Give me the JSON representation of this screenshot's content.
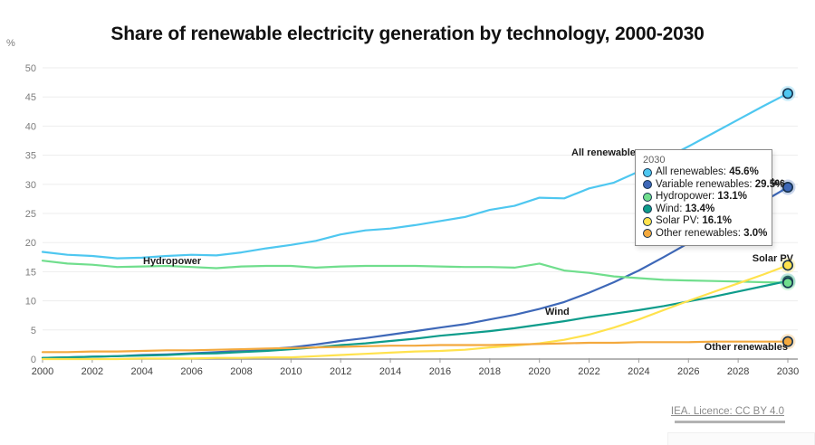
{
  "title": "Share of renewable electricity generation by technology, 2000-2030",
  "unit_label": "%",
  "footer": {
    "license_link": "IEA. Licence: CC BY 4.0"
  },
  "chart_data": {
    "type": "line",
    "x": [
      2000,
      2001,
      2002,
      2003,
      2004,
      2005,
      2006,
      2007,
      2008,
      2009,
      2010,
      2011,
      2012,
      2013,
      2014,
      2015,
      2016,
      2017,
      2018,
      2019,
      2020,
      2021,
      2022,
      2023,
      2024,
      2025,
      2026,
      2027,
      2028,
      2029,
      2030
    ],
    "x_tick_labels": [
      "2000",
      "2002",
      "2004",
      "2006",
      "2008",
      "2010",
      "2012",
      "2014",
      "2016",
      "2018",
      "2020",
      "2022",
      "2024",
      "2026",
      "2028",
      "2030"
    ],
    "ylim": [
      0,
      50
    ],
    "y_ticks": [
      0,
      5,
      10,
      15,
      20,
      25,
      30,
      35,
      40,
      45,
      50
    ],
    "grid": true,
    "legend_position": "none",
    "axis_colors": {
      "grid": "#ededed",
      "axis": "#9b9b9b",
      "y_label": "#7d7d7d",
      "x_label": "#3f3f3f"
    },
    "series": [
      {
        "name": "All renewables",
        "color": "#4EC7F0",
        "values": [
          18.4,
          17.9,
          17.7,
          17.3,
          17.4,
          17.7,
          17.9,
          17.8,
          18.3,
          19.0,
          19.6,
          20.3,
          21.4,
          22.1,
          22.4,
          23.0,
          23.7,
          24.4,
          25.6,
          26.3,
          27.7,
          27.6,
          29.3,
          30.3,
          32.2,
          34.3,
          36.5,
          38.8,
          41.1,
          43.4,
          45.6
        ]
      },
      {
        "name": "Variable renewables",
        "color": "#3E68B8",
        "values": [
          0.2,
          0.3,
          0.4,
          0.5,
          0.7,
          0.8,
          1.0,
          1.2,
          1.4,
          1.7,
          2.0,
          2.5,
          3.1,
          3.6,
          4.2,
          4.8,
          5.4,
          6.0,
          6.8,
          7.6,
          8.6,
          9.8,
          11.4,
          13.2,
          15.2,
          17.5,
          19.9,
          22.2,
          24.6,
          27.0,
          29.5
        ]
      },
      {
        "name": "Hydropower",
        "color": "#70DE8D",
        "values": [
          16.9,
          16.4,
          16.2,
          15.8,
          15.9,
          16.0,
          15.8,
          15.6,
          15.9,
          16.0,
          16.0,
          15.7,
          15.9,
          16.0,
          16.0,
          16.0,
          15.9,
          15.8,
          15.8,
          15.7,
          16.4,
          15.2,
          14.8,
          14.2,
          13.9,
          13.6,
          13.5,
          13.4,
          13.3,
          13.2,
          13.1
        ]
      },
      {
        "name": "Wind",
        "color": "#0E9C8B",
        "values": [
          0.2,
          0.3,
          0.4,
          0.5,
          0.6,
          0.7,
          0.9,
          1.0,
          1.2,
          1.4,
          1.7,
          2.0,
          2.4,
          2.7,
          3.1,
          3.5,
          4.0,
          4.4,
          4.8,
          5.3,
          5.9,
          6.5,
          7.2,
          7.8,
          8.4,
          9.1,
          9.9,
          10.7,
          11.6,
          12.5,
          13.4
        ]
      },
      {
        "name": "Solar PV",
        "color": "#FFE24D",
        "values": [
          0.0,
          0.0,
          0.0,
          0.0,
          0.1,
          0.1,
          0.1,
          0.2,
          0.2,
          0.3,
          0.3,
          0.5,
          0.7,
          0.9,
          1.1,
          1.3,
          1.4,
          1.6,
          2.0,
          2.3,
          2.7,
          3.3,
          4.2,
          5.4,
          6.8,
          8.4,
          10.0,
          11.5,
          13.0,
          14.5,
          16.1
        ]
      },
      {
        "name": "Other renewables",
        "color": "#F3A93E",
        "values": [
          1.2,
          1.2,
          1.3,
          1.3,
          1.4,
          1.5,
          1.5,
          1.6,
          1.7,
          1.8,
          1.9,
          2.0,
          2.1,
          2.2,
          2.3,
          2.3,
          2.4,
          2.4,
          2.4,
          2.5,
          2.6,
          2.7,
          2.8,
          2.8,
          2.9,
          2.9,
          2.9,
          3.0,
          3.0,
          3.0,
          3.0
        ]
      }
    ],
    "on_chart_labels": {
      "all_renewables": "All renewables",
      "variable_renewables": "Variable renewables",
      "hydropower": "Hydropower",
      "wind": "Wind",
      "solar_pv": "Solar PV",
      "other_renewables": "Other renewables"
    },
    "tooltip": {
      "title": "2030",
      "rows": [
        {
          "label": "All renewables:",
          "value": "45.6%",
          "color": "#4EC7F0"
        },
        {
          "label": "Variable renewables:",
          "value": "29.5%",
          "color": "#3E68B8"
        },
        {
          "label": "Hydropower:",
          "value": "13.1%",
          "color": "#70DE8D"
        },
        {
          "label": "Wind:",
          "value": "13.4%",
          "color": "#0E9C8B"
        },
        {
          "label": "Solar PV:",
          "value": "16.1%",
          "color": "#FFE24D"
        },
        {
          "label": "Other renewables:",
          "value": "3.0%",
          "color": "#F3A93E"
        }
      ]
    }
  }
}
